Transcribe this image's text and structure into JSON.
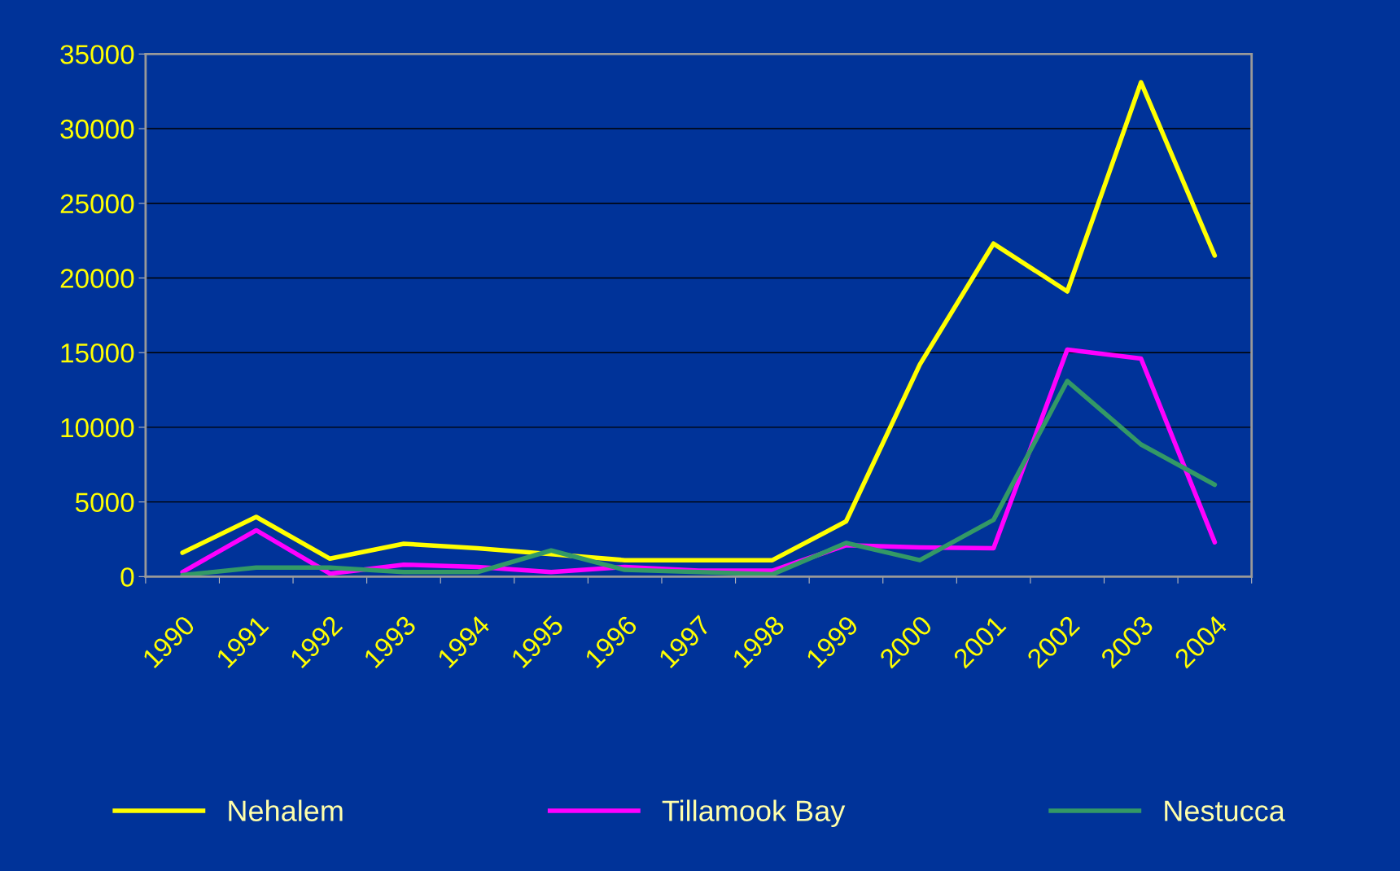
{
  "chart_data": {
    "type": "line",
    "categories": [
      "1990",
      "1991",
      "1992",
      "1993",
      "1994",
      "1995",
      "1996",
      "1997",
      "1998",
      "1999",
      "2000",
      "2001",
      "2002",
      "2003",
      "2004"
    ],
    "series": [
      {
        "name": "Nehalem",
        "color": "#ffff00",
        "values": [
          1600,
          4000,
          1200,
          2200,
          1900,
          1500,
          1100,
          1100,
          1100,
          3700,
          14200,
          22300,
          19100,
          33100,
          21500
        ]
      },
      {
        "name": "Tillamook Bay",
        "color": "#ff00ff",
        "values": [
          300,
          3100,
          200,
          800,
          650,
          300,
          650,
          400,
          400,
          2100,
          1950,
          1900,
          15200,
          14600,
          2300
        ]
      },
      {
        "name": "Nestucca",
        "color": "#339966",
        "values": [
          100,
          600,
          600,
          300,
          300,
          1750,
          450,
          300,
          150,
          2250,
          1100,
          3800,
          13100,
          8850,
          6150
        ]
      }
    ],
    "ylim": [
      0,
      35000
    ],
    "yticks": [
      0,
      5000,
      10000,
      15000,
      20000,
      25000,
      30000,
      35000
    ],
    "grid": "y",
    "legend": "bottom",
    "marker": "none",
    "line_style": "solid"
  }
}
